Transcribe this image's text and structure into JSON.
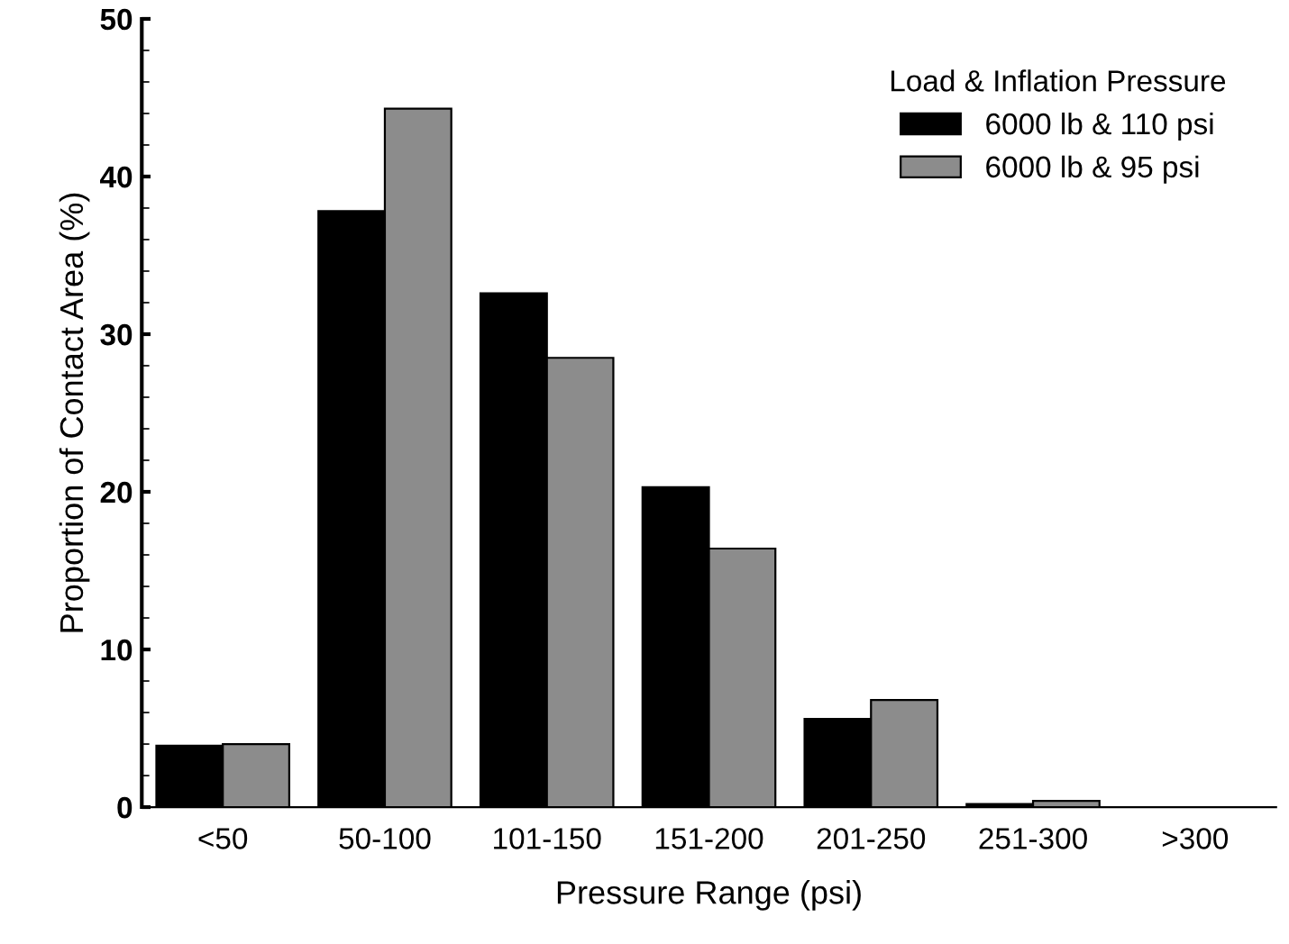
{
  "chart_data": {
    "type": "bar",
    "xlabel": "Pressure Range (psi)",
    "ylabel": "Proportion of Contact Area (%)",
    "legend_title": "Load & Inflation Pressure",
    "legend": "top right",
    "categories": [
      "<50",
      "50-100",
      "101-150",
      "151-200",
      "201-250",
      "251-300",
      ">300"
    ],
    "series": [
      {
        "name": "6000 lb & 110 psi",
        "color": "#000000",
        "values": [
          3.9,
          37.8,
          32.6,
          20.3,
          5.6,
          0.2,
          0
        ]
      },
      {
        "name": "6000 lb & 95 psi",
        "color": "#8c8c8c",
        "values": [
          4.0,
          44.3,
          28.5,
          16.4,
          6.8,
          0.4,
          0
        ]
      }
    ],
    "ylim": [
      0,
      50
    ],
    "yticks": [
      0,
      10,
      20,
      30,
      40,
      50
    ],
    "grid": false
  }
}
